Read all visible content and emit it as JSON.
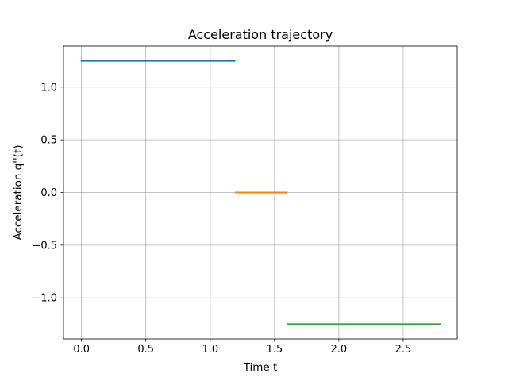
{
  "chart_data": {
    "type": "line",
    "title": "Acceleration trajectory",
    "xlabel": "Time t",
    "ylabel": "Acceleration q''(t)",
    "xlim": [
      -0.14,
      2.92
    ],
    "ylim": [
      -1.39,
      1.39
    ],
    "xticks": [
      0.0,
      0.5,
      1.0,
      1.5,
      2.0,
      2.5
    ],
    "xtick_labels": [
      "0.0",
      "0.5",
      "1.0",
      "1.5",
      "2.0",
      "2.5"
    ],
    "yticks": [
      -1.0,
      -0.5,
      0.0,
      0.5,
      1.0
    ],
    "ytick_labels": [
      "−1.0",
      "−0.5",
      "0.0",
      "0.5",
      "1.0"
    ],
    "grid": true,
    "series": [
      {
        "color": "#1f77b4",
        "x": [
          0.0,
          1.19
        ],
        "y": [
          1.25,
          1.25
        ]
      },
      {
        "color": "#ff7f0e",
        "x": [
          1.2,
          1.59
        ],
        "y": [
          0.0,
          0.0
        ]
      },
      {
        "color": "#2ca02c",
        "x": [
          1.6,
          2.79
        ],
        "y": [
          -1.25,
          -1.25
        ]
      }
    ]
  }
}
